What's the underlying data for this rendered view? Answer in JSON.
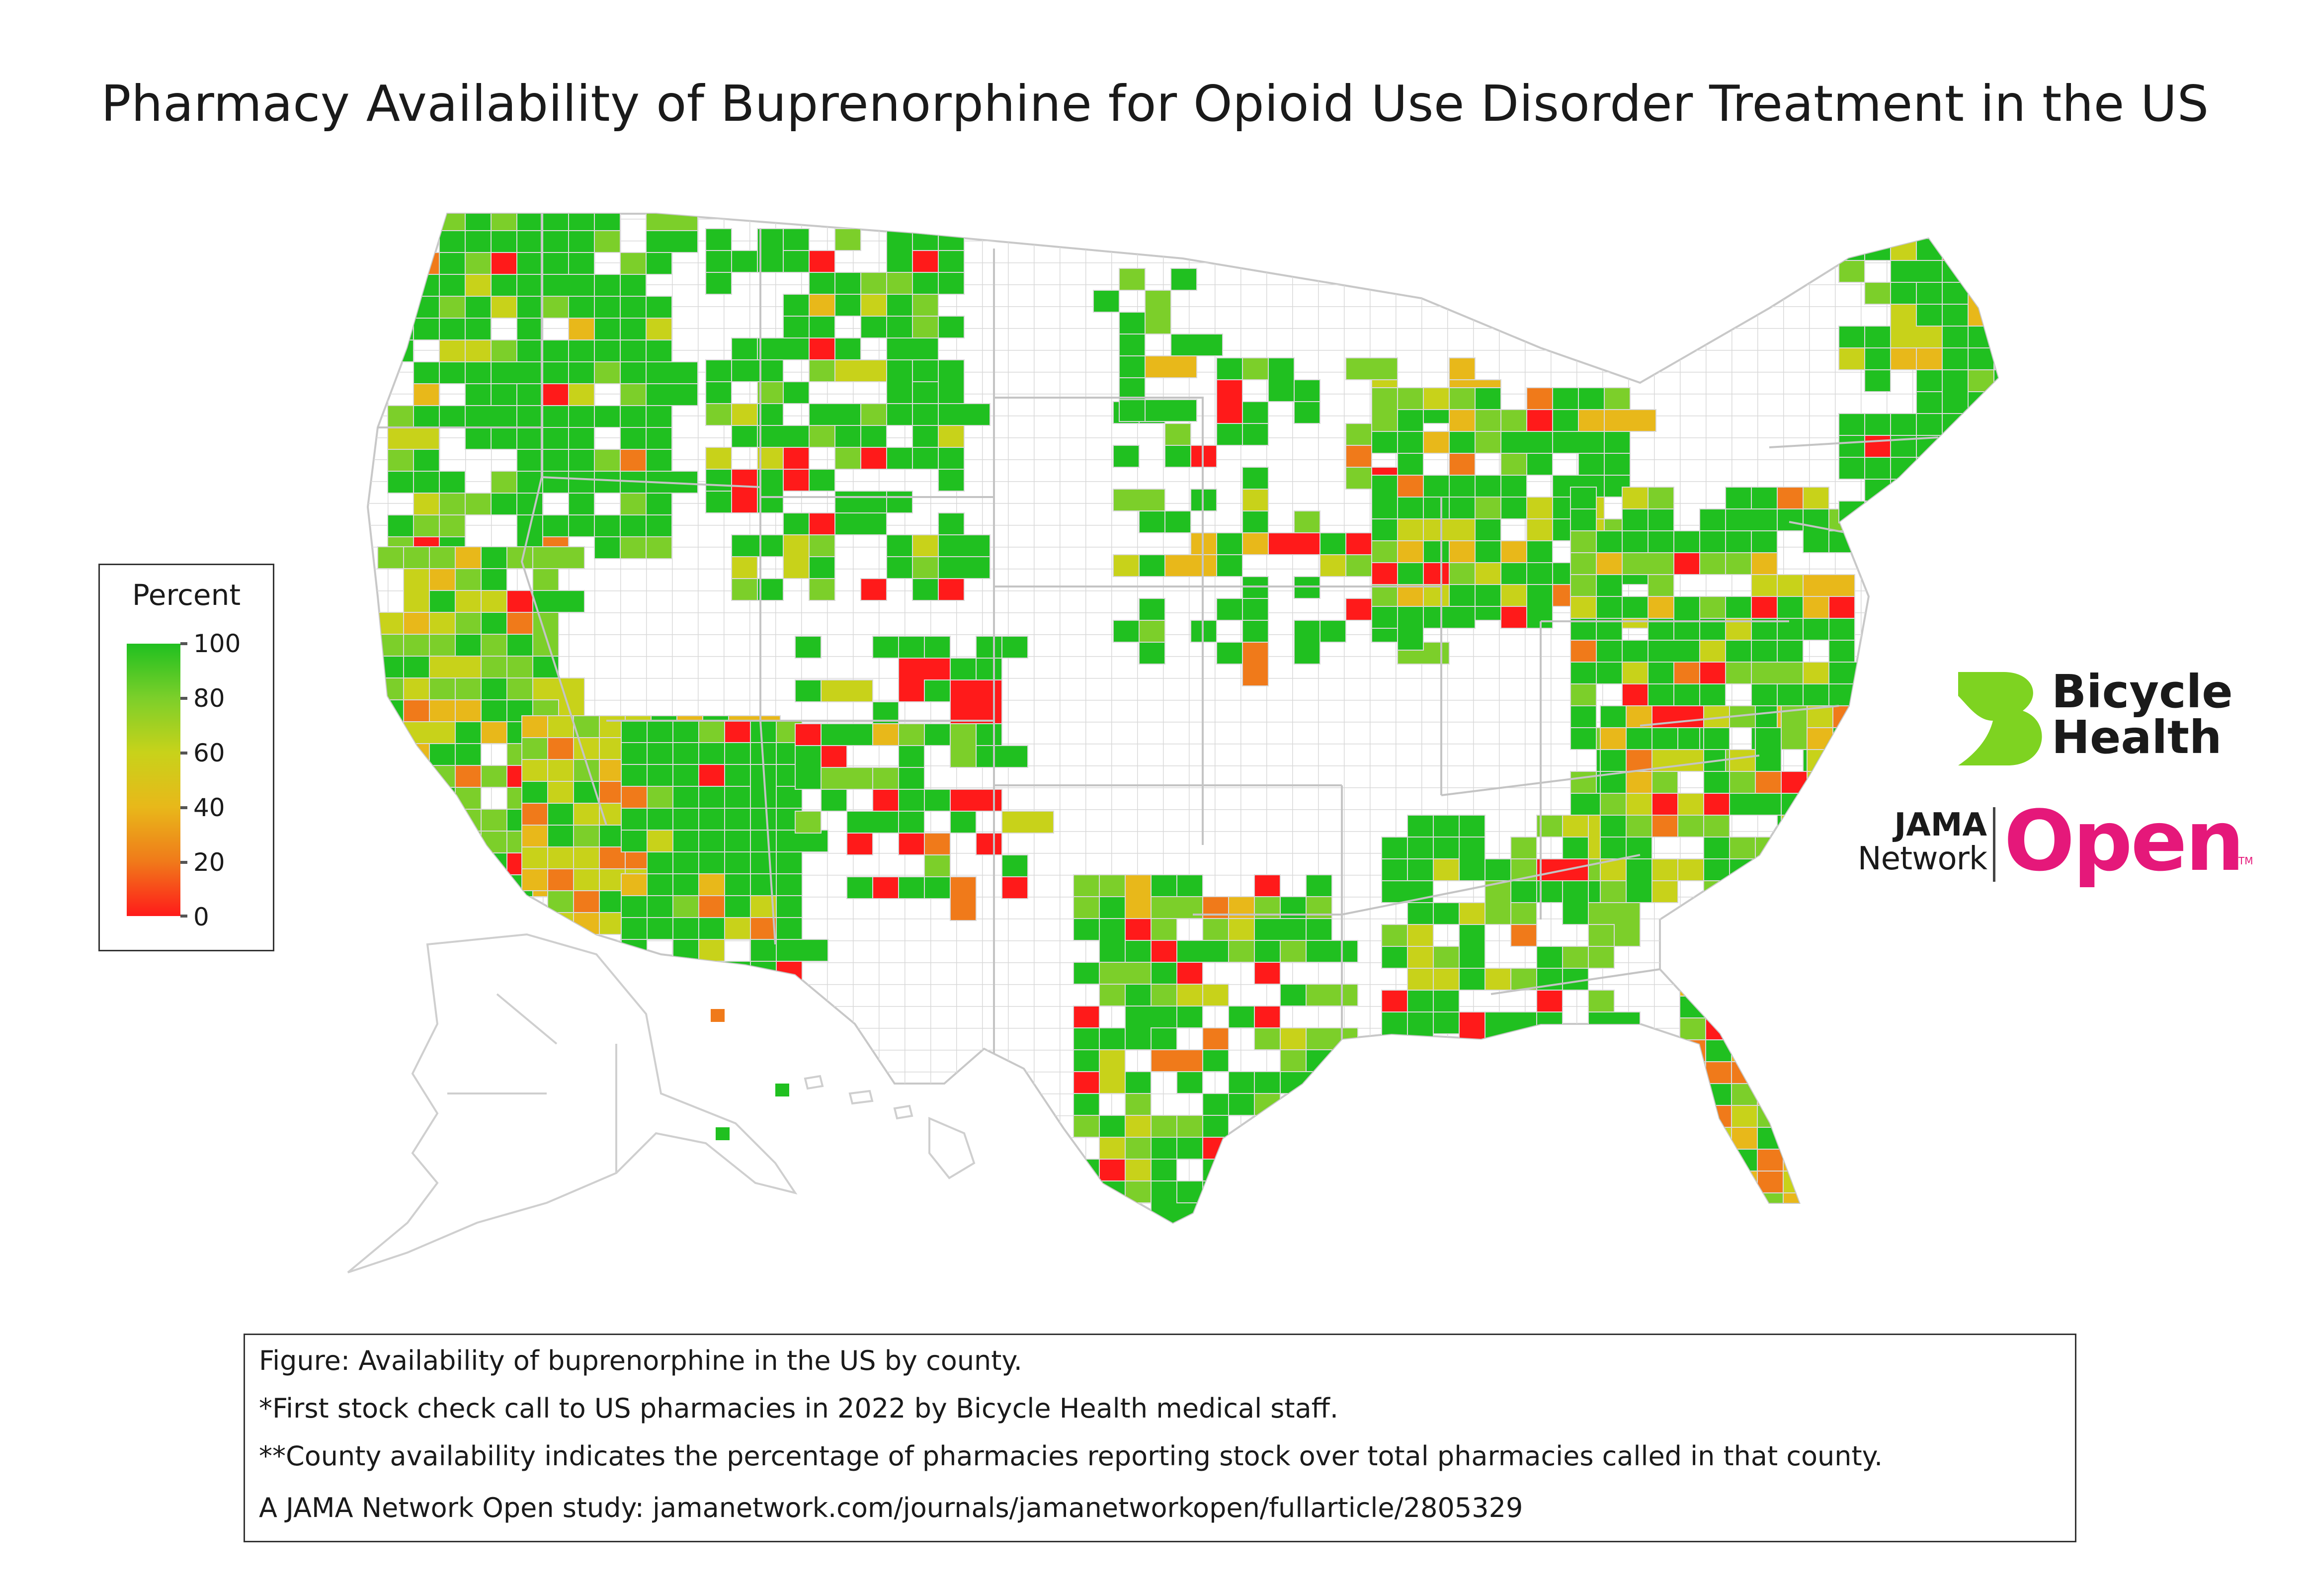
{
  "title": "Pharmacy Availability of Buprenorphine for Opioid Use Disorder Treatment in the US",
  "legend": {
    "title": "Percent",
    "ticks": [
      "100",
      "80",
      "60",
      "40",
      "20",
      "0"
    ],
    "colors": {
      "c100": "#20c020",
      "c80": "#7ccf2a",
      "c60": "#c8d21a",
      "c40": "#e8b81a",
      "c20": "#f07a1a",
      "c0": "#ff1a1a",
      "no_data": "#ffffff",
      "border": "#d9d9d9"
    }
  },
  "logos": {
    "bicycle_line1": "Bicycle",
    "bicycle_line2": "Health",
    "bicycle_color": "#7ed321",
    "jama_line1": "JAMA",
    "jama_line2": "Network",
    "jama_open": "Open",
    "jama_tm": "TM",
    "jama_color": "#e5187a"
  },
  "notes": {
    "line1": "Figure: Availability of buprenorphine in the US by county.",
    "line2": "*First stock check call to US pharmacies in 2022 by Bicycle Health medical staff.",
    "line3": "**County availability indicates the percentage of pharmacies reporting stock over total pharmacies called in that county.",
    "line4": "A JAMA Network Open study: jamanetwork.com/journals/jamanetworkopen/fullarticle/2805329"
  }
}
